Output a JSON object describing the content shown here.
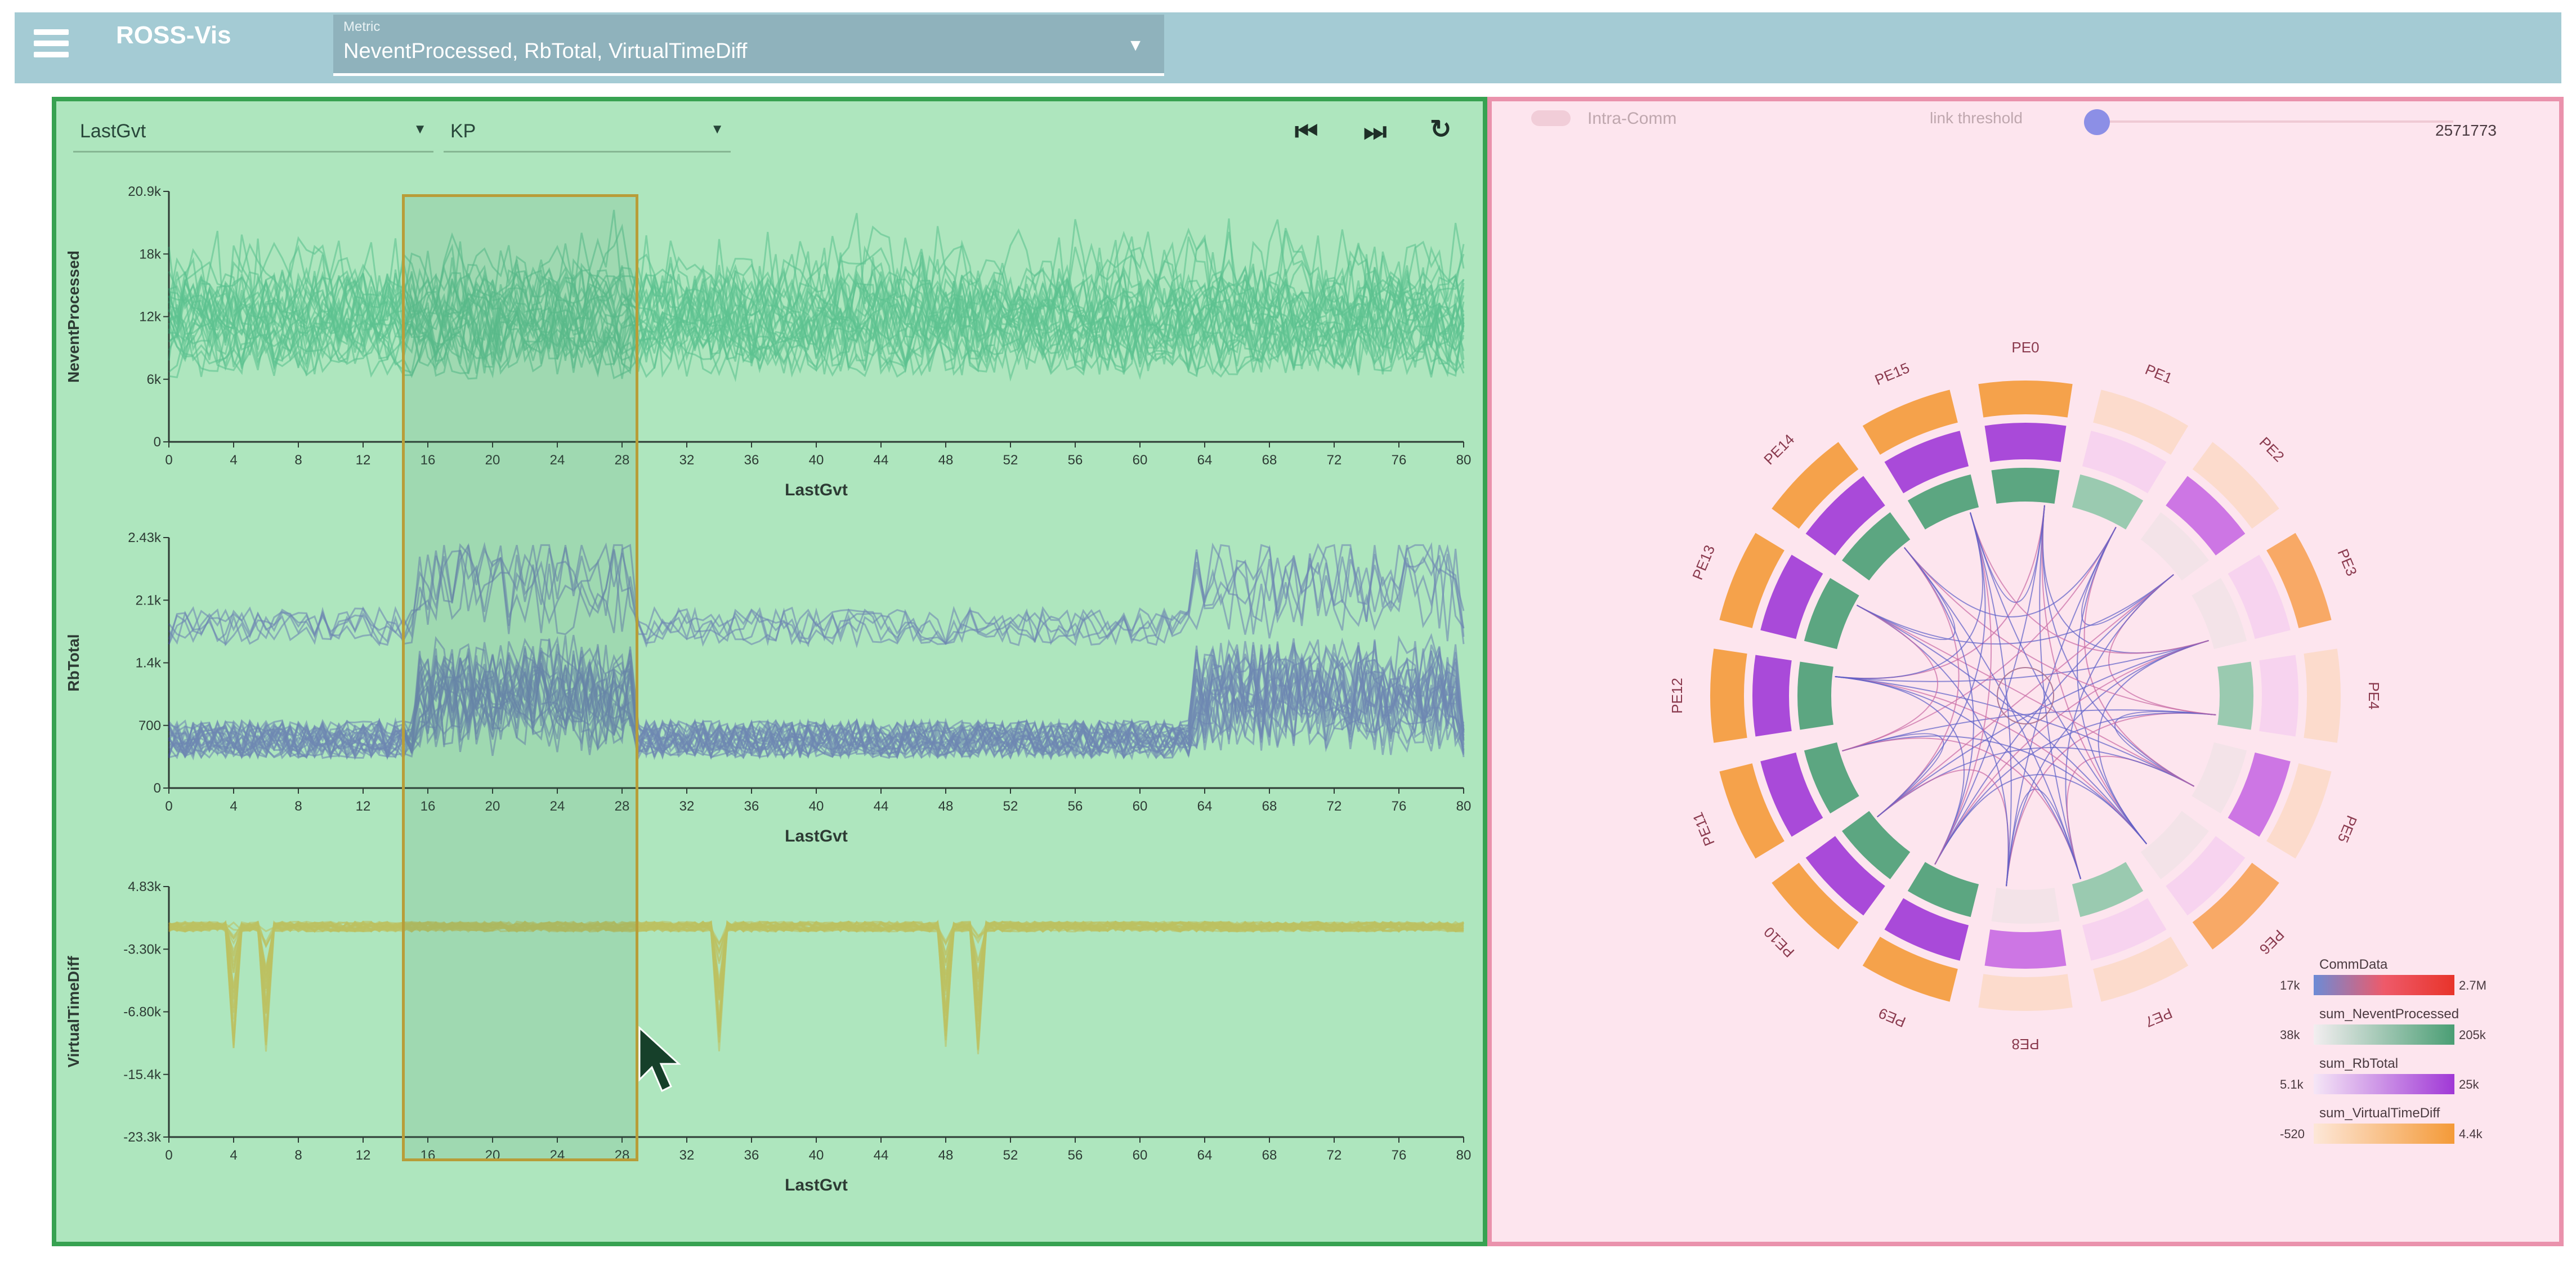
{
  "app": {
    "title": "ROSS-Vis"
  },
  "metrics_select": {
    "label": "Metric",
    "value": "NeventProcessed, RbTotal, VirtualTimeDiff"
  },
  "timeseries_panel": {
    "x_dropdown": "LastGvt",
    "group_dropdown": "KP",
    "controls": [
      "prev",
      "next",
      "reset"
    ],
    "selection": {
      "x_start": 14.5,
      "x_end": 28.5
    }
  },
  "chart_data": [
    {
      "type": "line",
      "title": "",
      "xlabel": "LastGvt",
      "ylabel": "NeventProcessed",
      "x_ticks": [
        0,
        4,
        8,
        12,
        16,
        20,
        24,
        28,
        32,
        36,
        40,
        44,
        48,
        52,
        56,
        60,
        64,
        68,
        72,
        76,
        80
      ],
      "xlim": [
        0,
        80
      ],
      "y_ticks": [
        "0",
        "6k",
        "12k",
        "18k",
        "20.9k"
      ],
      "ylim": [
        0,
        20900
      ],
      "color": "#1aa56a"
    },
    {
      "type": "line",
      "title": "",
      "xlabel": "LastGvt",
      "ylabel": "RbTotal",
      "x_ticks": [
        0,
        4,
        8,
        12,
        16,
        20,
        24,
        28,
        32,
        36,
        40,
        44,
        48,
        52,
        56,
        60,
        64,
        68,
        72,
        76,
        80
      ],
      "xlim": [
        0,
        80
      ],
      "y_ticks": [
        "0",
        "700",
        "1.4k",
        "2.1k",
        "2.43k"
      ],
      "ylim": [
        0,
        2430
      ],
      "color": "#3a3aa8"
    },
    {
      "type": "line",
      "title": "",
      "xlabel": "LastGvt",
      "ylabel": "VirtualTimeDiff",
      "x_ticks": [
        0,
        4,
        8,
        12,
        16,
        20,
        24,
        28,
        32,
        36,
        40,
        44,
        48,
        52,
        56,
        60,
        64,
        68,
        72,
        76,
        80
      ],
      "xlim": [
        0,
        80
      ],
      "y_ticks": [
        "-23.3k",
        "-15.4k",
        "-6.80k",
        "-3.30k",
        "4.83k"
      ],
      "ylim": [
        -23300,
        4830
      ],
      "color": "#c8a418"
    }
  ],
  "comm_panel": {
    "toggle_label": "Intra-Comm",
    "threshold_label": "link threshold",
    "threshold_value": "2571773",
    "pe_labels": [
      "PE0",
      "PE1",
      "PE2",
      "PE3",
      "PE4",
      "PE5",
      "PE6",
      "PE7",
      "PE8",
      "PE9",
      "PE10",
      "PE11",
      "PE12",
      "PE13",
      "PE14",
      "PE15"
    ],
    "legend": [
      {
        "title": "CommData",
        "min": "17k",
        "max": "2.7M",
        "colors": [
          "#6c8bd6",
          "#ee5a6a",
          "#e8342a"
        ]
      },
      {
        "title": "sum_NeventProcessed",
        "min": "38k",
        "max": "205k",
        "colors": [
          "#f3eef0",
          "#4a9e74"
        ]
      },
      {
        "title": "sum_RbTotal",
        "min": "5.1k",
        "max": "25k",
        "colors": [
          "#f5e6f6",
          "#a038d6"
        ]
      },
      {
        "title": "sum_VirtualTimeDiff",
        "min": "-520",
        "max": "4.4k",
        "colors": [
          "#fde7d8",
          "#f49a38"
        ]
      }
    ]
  }
}
